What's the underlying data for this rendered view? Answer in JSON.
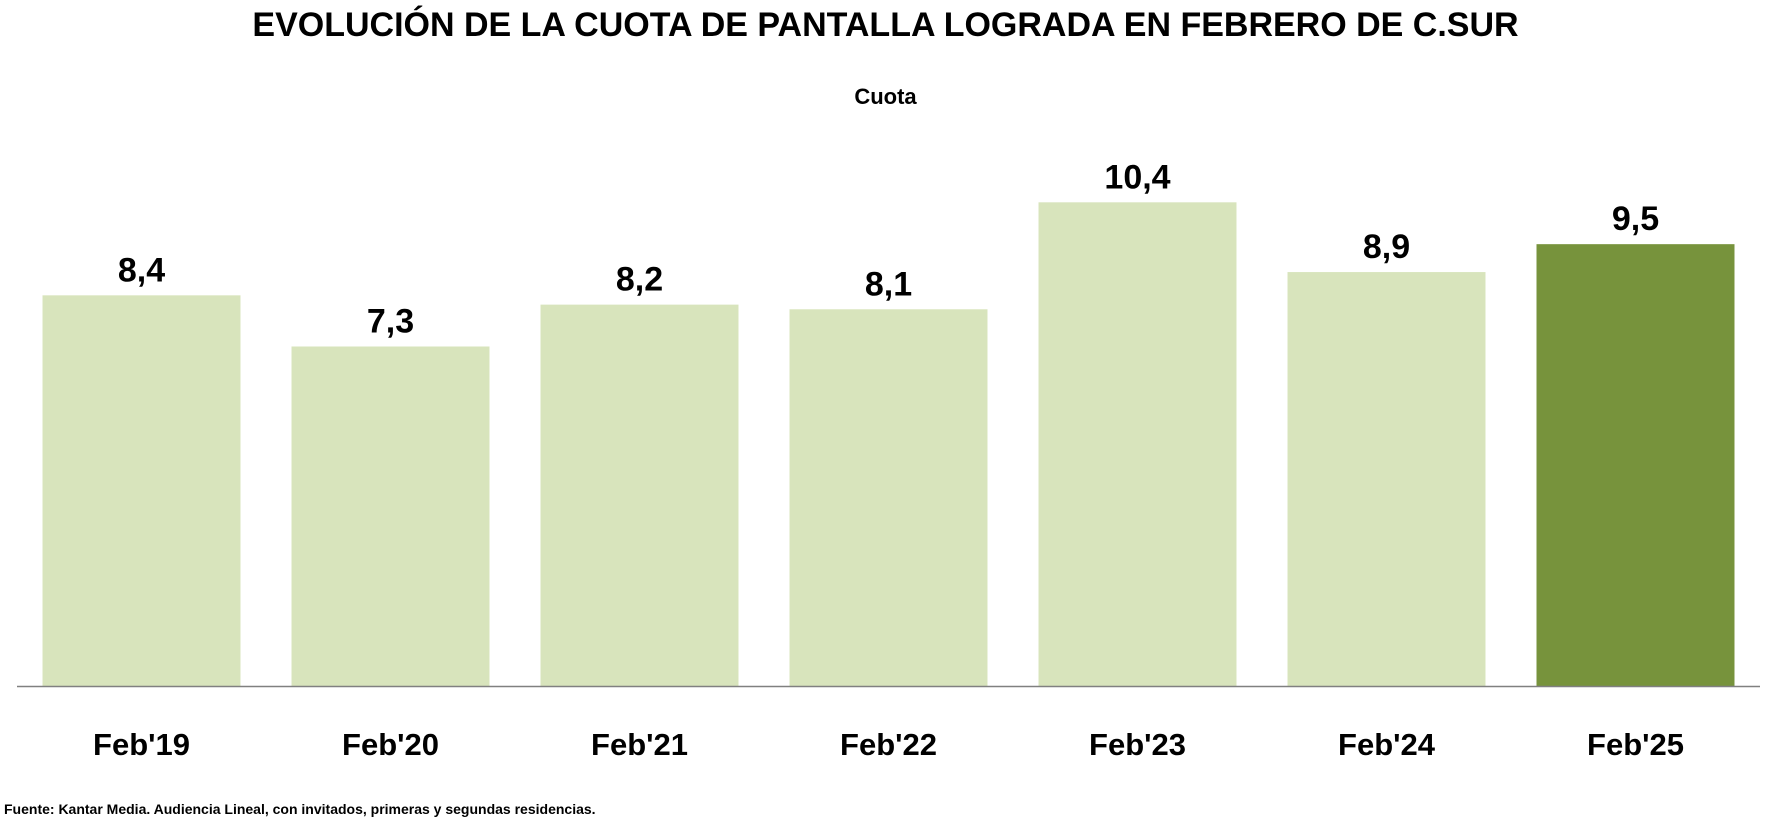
{
  "chart_data": {
    "type": "bar",
    "title": "EVOLUCIÓN DE LA CUOTA DE PANTALLA LOGRADA EN FEBRERO DE C.SUR",
    "subtitle": "Cuota",
    "categories": [
      "Feb'19",
      "Feb'20",
      "Feb'21",
      "Feb'22",
      "Feb'23",
      "Feb'24",
      "Feb'25"
    ],
    "values": [
      8.4,
      7.3,
      8.2,
      8.1,
      10.4,
      8.9,
      9.5
    ],
    "value_labels": [
      "8,4",
      "7,3",
      "8,2",
      "8,1",
      "10,4",
      "8,9",
      "9,5"
    ],
    "xlabel": "",
    "ylabel": "",
    "ylim": [
      0,
      14.75
    ],
    "grid": false,
    "legend": "none",
    "colors": {
      "default": "#d8e4bc",
      "highlight": "#77933c",
      "axis": "#808080"
    },
    "highlight_index": 6
  },
  "footer": "Fuente: Kantar Media. Audiencia Lineal, con invitados, primeras y segundas residencias."
}
